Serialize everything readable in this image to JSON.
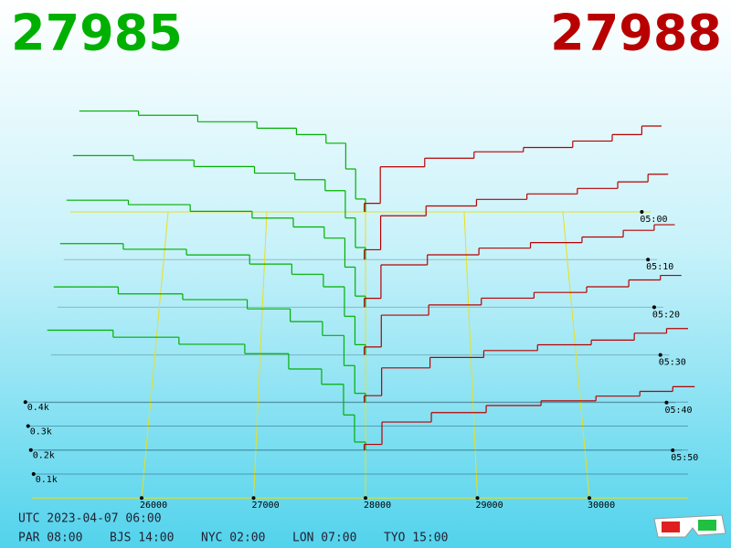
{
  "chart_data": {
    "type": "depth3d",
    "bid_price": "27985",
    "ask_price": "27988",
    "bid_color": "#00b000",
    "ask_color": "#b80000",
    "mid_price": 28000,
    "xticks": [
      26000,
      27000,
      28000,
      29000,
      30000
    ],
    "yticks": [
      {
        "value": 100,
        "label": "0.1k"
      },
      {
        "value": 200,
        "label": "0.2k"
      },
      {
        "value": 300,
        "label": "0.3k"
      },
      {
        "value": 400,
        "label": "0.4k"
      }
    ],
    "times": [
      "05:00",
      "05:10",
      "05:20",
      "05:30",
      "05:40",
      "05:50"
    ],
    "bid_prices": [
      25100,
      25700,
      26300,
      26900,
      27300,
      27600,
      27800,
      27900
    ],
    "ask_prices": [
      27988,
      28150,
      28600,
      29100,
      29600,
      30100,
      30500,
      30800
    ],
    "snapshots": [
      {
        "bids": [
          470,
          450,
          420,
          390,
          360,
          320,
          200,
          60
        ],
        "asks": [
          40,
          210,
          250,
          280,
          300,
          330,
          360,
          400
        ]
      },
      {
        "bids": [
          475,
          455,
          425,
          395,
          365,
          315,
          190,
          55
        ],
        "asks": [
          45,
          200,
          245,
          275,
          300,
          325,
          355,
          390
        ]
      },
      {
        "bids": [
          480,
          460,
          430,
          400,
          360,
          310,
          180,
          50
        ],
        "asks": [
          40,
          190,
          235,
          265,
          290,
          315,
          345,
          370
        ]
      },
      {
        "bids": [
          490,
          465,
          440,
          400,
          355,
          300,
          170,
          45
        ],
        "asks": [
          35,
          175,
          220,
          250,
          275,
          300,
          330,
          350
        ]
      },
      {
        "bids": [
          500,
          470,
          445,
          405,
          350,
          290,
          160,
          40
        ],
        "asks": [
          30,
          150,
          195,
          225,
          250,
          270,
          300,
          320
        ]
      },
      {
        "bids": [
          510,
          480,
          450,
          410,
          345,
          280,
          150,
          35
        ],
        "asks": [
          25,
          120,
          160,
          190,
          210,
          230,
          250,
          270
        ]
      }
    ]
  },
  "footer": {
    "utc": "UTC 2023-04-07 06:00",
    "clocks": [
      "PAR 08:00",
      "BJS 14:00",
      "NYC 02:00",
      "LON 07:00",
      "TYO 15:00"
    ]
  }
}
